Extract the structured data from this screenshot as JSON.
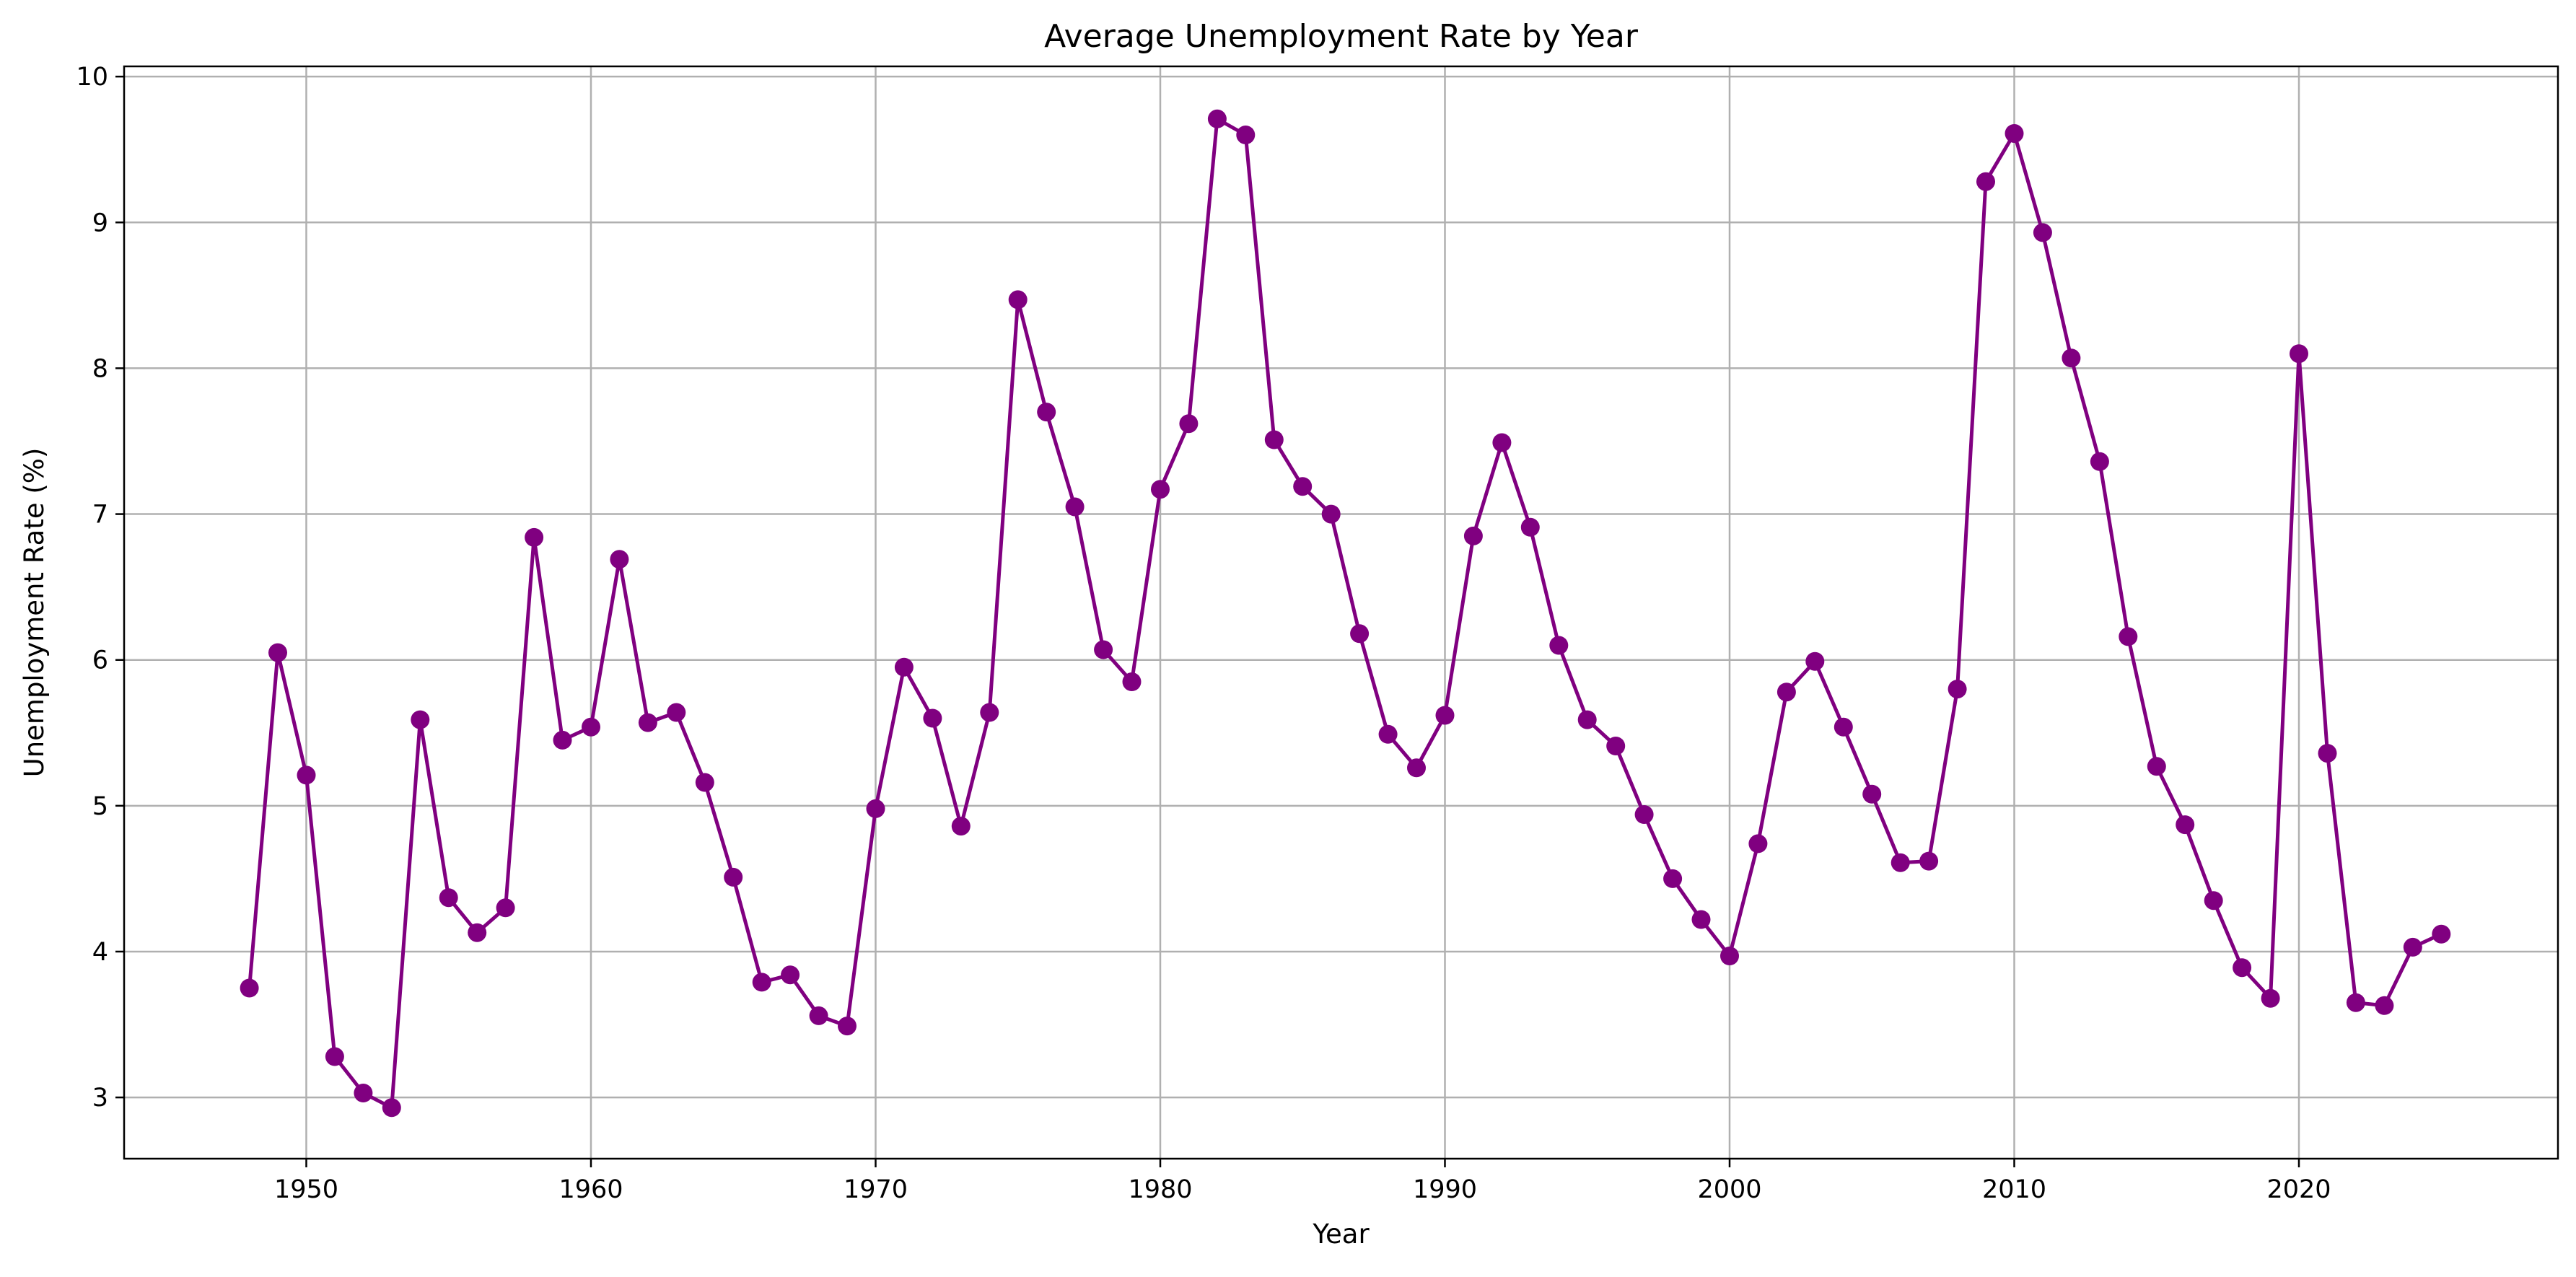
{
  "chart_data": {
    "type": "line",
    "title": "Average Unemployment Rate by Year",
    "xlabel": "Year",
    "ylabel": "Unemployment Rate (%)",
    "xlim": [
      1943.6,
      2029.1
    ],
    "ylim": [
      2.58,
      10.07
    ],
    "x_ticks": [
      1950,
      1960,
      1970,
      1980,
      1990,
      2000,
      2010,
      2020
    ],
    "y_ticks": [
      3,
      4,
      5,
      6,
      7,
      8,
      9,
      10
    ],
    "grid": true,
    "legend": "none",
    "marker": "circle",
    "color": "#800080",
    "grid_color": "#b0b0b0",
    "series": [
      {
        "x": [
          1948,
          1949,
          1950,
          1951,
          1952,
          1953,
          1954,
          1955,
          1956,
          1957,
          1958,
          1959,
          1960,
          1961,
          1962,
          1963,
          1964,
          1965,
          1966,
          1967,
          1968,
          1969,
          1970,
          1971,
          1972,
          1973,
          1974,
          1975,
          1976,
          1977,
          1978,
          1979,
          1980,
          1981,
          1982,
          1983,
          1984,
          1985,
          1986,
          1987,
          1988,
          1989,
          1990,
          1991,
          1992,
          1993,
          1994,
          1995,
          1996,
          1997,
          1998,
          1999,
          2000,
          2001,
          2002,
          2003,
          2004,
          2005,
          2006,
          2007,
          2008,
          2009,
          2010,
          2011,
          2012,
          2013,
          2014,
          2015,
          2016,
          2017,
          2018,
          2019,
          2020,
          2021,
          2022,
          2023,
          2024,
          2025
        ],
        "values": [
          3.75,
          6.05,
          5.21,
          3.28,
          3.03,
          2.93,
          5.59,
          4.37,
          4.13,
          4.3,
          6.84,
          5.45,
          5.54,
          6.69,
          5.57,
          5.64,
          5.16,
          4.51,
          3.79,
          3.84,
          3.56,
          3.49,
          4.98,
          5.95,
          5.6,
          4.86,
          5.64,
          8.47,
          7.7,
          7.05,
          6.07,
          5.85,
          7.17,
          7.62,
          9.71,
          9.6,
          7.51,
          7.19,
          7.0,
          6.18,
          5.49,
          5.26,
          5.62,
          6.85,
          7.49,
          6.91,
          6.1,
          5.59,
          5.41,
          4.94,
          4.5,
          4.22,
          3.97,
          4.74,
          5.78,
          5.99,
          5.54,
          5.08,
          4.61,
          4.62,
          5.8,
          9.28,
          9.61,
          8.93,
          8.07,
          7.36,
          6.16,
          5.27,
          4.87,
          4.35,
          3.89,
          3.68,
          8.1,
          5.36,
          3.65,
          3.63,
          4.03,
          4.12
        ]
      }
    ]
  }
}
